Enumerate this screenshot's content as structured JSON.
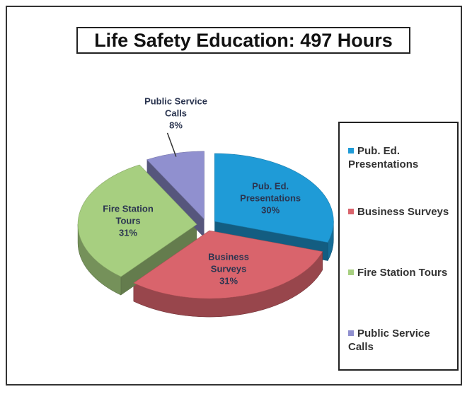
{
  "chart_data": {
    "type": "pie3d",
    "title": "Life Safety Education:  497 Hours",
    "categories": [
      "Pub. Ed. Presentations",
      "Business Surveys",
      "Fire Station Tours",
      "Public Service Calls"
    ],
    "values": [
      30,
      31,
      31,
      8
    ],
    "value_labels": [
      "30%",
      "31%",
      "31%",
      "8%"
    ],
    "colors": [
      "#1f9bd7",
      "#d9646c",
      "#a7cf80",
      "#9090cf"
    ],
    "legend": "right"
  }
}
